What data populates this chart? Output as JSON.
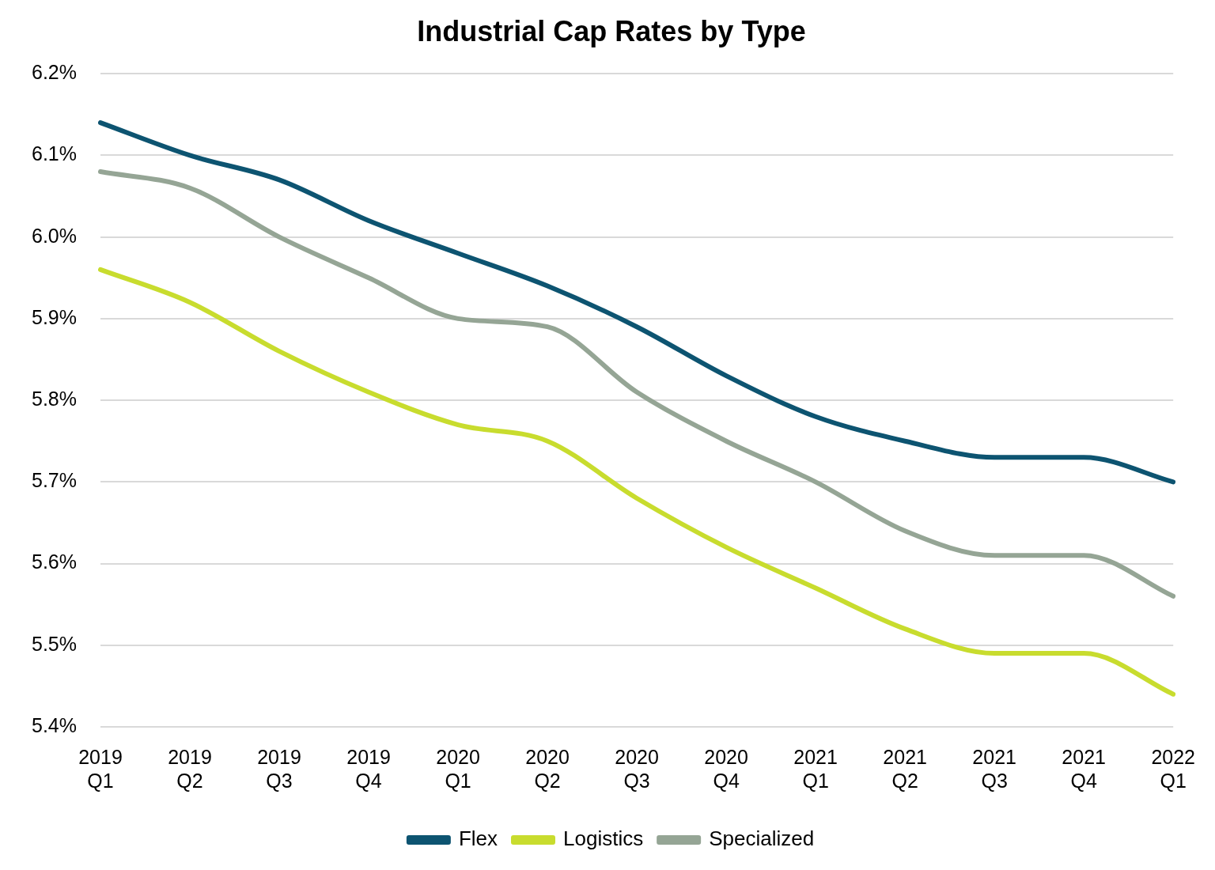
{
  "chart_data": {
    "type": "line",
    "title": "Industrial Cap Rates by Type",
    "categories": [
      "2019 Q1",
      "2019 Q2",
      "2019 Q3",
      "2019 Q4",
      "2020 Q1",
      "2020 Q2",
      "2020 Q3",
      "2020 Q4",
      "2021 Q1",
      "2021 Q2",
      "2021 Q3",
      "2021 Q4",
      "2022 Q1"
    ],
    "series": [
      {
        "name": "Flex",
        "color": "#0d5471",
        "values": [
          6.14,
          6.1,
          6.07,
          6.02,
          5.98,
          5.94,
          5.89,
          5.83,
          5.78,
          5.75,
          5.73,
          5.73,
          5.7
        ]
      },
      {
        "name": "Logistics",
        "color": "#c8dc2e",
        "values": [
          5.96,
          5.92,
          5.86,
          5.81,
          5.77,
          5.75,
          5.68,
          5.62,
          5.57,
          5.52,
          5.49,
          5.49,
          5.44
        ]
      },
      {
        "name": "Specialized",
        "color": "#95a595",
        "values": [
          6.08,
          6.06,
          6.0,
          5.95,
          5.9,
          5.89,
          5.81,
          5.75,
          5.7,
          5.64,
          5.61,
          5.61,
          5.56
        ]
      }
    ],
    "ylim": [
      5.4,
      6.2
    ],
    "yticks": [
      {
        "value": 5.4,
        "label": "5.4%"
      },
      {
        "value": 5.5,
        "label": "5.5%"
      },
      {
        "value": 5.6,
        "label": "5.6%"
      },
      {
        "value": 5.7,
        "label": "5.7%"
      },
      {
        "value": 5.8,
        "label": "5.8%"
      },
      {
        "value": 5.9,
        "label": "5.9%"
      },
      {
        "value": 6.0,
        "label": "6.0%"
      },
      {
        "value": 6.1,
        "label": "6.1%"
      },
      {
        "value": 6.2,
        "label": "6.2%"
      }
    ],
    "grid": "y",
    "legend": "bottom",
    "marker": "none",
    "line_style": "solid"
  }
}
